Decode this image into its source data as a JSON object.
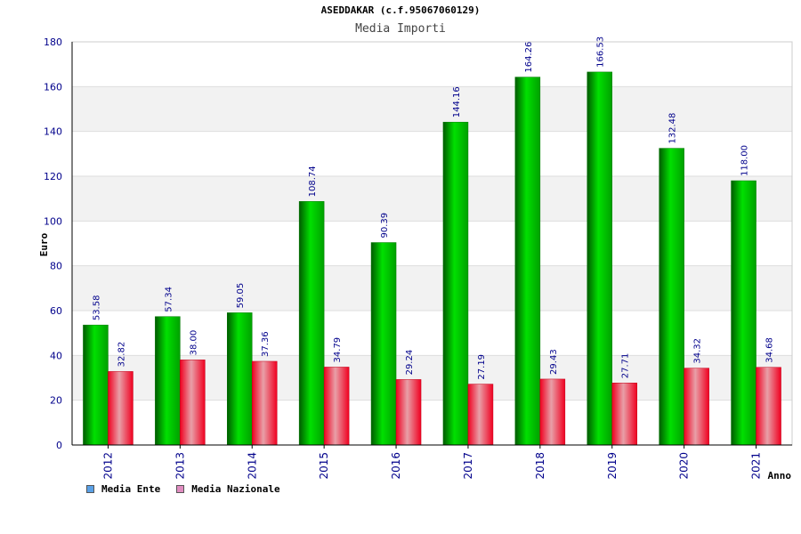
{
  "chart_data": {
    "type": "bar",
    "title": "ASEDDAKAR (c.f.95067060129)",
    "subtitle": "Media Importi",
    "xlabel": "Anno",
    "ylabel": "Euro",
    "ylim": [
      0,
      180
    ],
    "yticks": [
      0,
      20,
      40,
      60,
      80,
      100,
      120,
      140,
      160,
      180
    ],
    "grid": true,
    "legend_position": "bottom-left",
    "categories": [
      "2012",
      "2013",
      "2014",
      "2015",
      "2016",
      "2017",
      "2018",
      "2019",
      "2020",
      "2021"
    ],
    "series": [
      {
        "name": "Media Ente",
        "color": "#00b400",
        "legend_color": "#5aa0e6",
        "values": [
          53.58,
          57.34,
          59.05,
          108.74,
          90.39,
          144.16,
          164.26,
          166.53,
          132.48,
          118.0
        ],
        "labels": [
          "53.58",
          "57.34",
          "59.05",
          "108.74",
          "90.39",
          "144.16",
          "164.26",
          "166.53",
          "132.48",
          "118.00"
        ]
      },
      {
        "name": "Media Nazionale",
        "color": "#f00020",
        "legend_color": "#e08cc0",
        "values": [
          32.82,
          38.0,
          37.36,
          34.79,
          29.24,
          27.19,
          29.43,
          27.71,
          34.32,
          34.68
        ],
        "labels": [
          "32.82",
          "38.00",
          "37.36",
          "34.79",
          "29.24",
          "27.19",
          "29.43",
          "27.71",
          "34.32",
          "34.68"
        ]
      }
    ]
  }
}
